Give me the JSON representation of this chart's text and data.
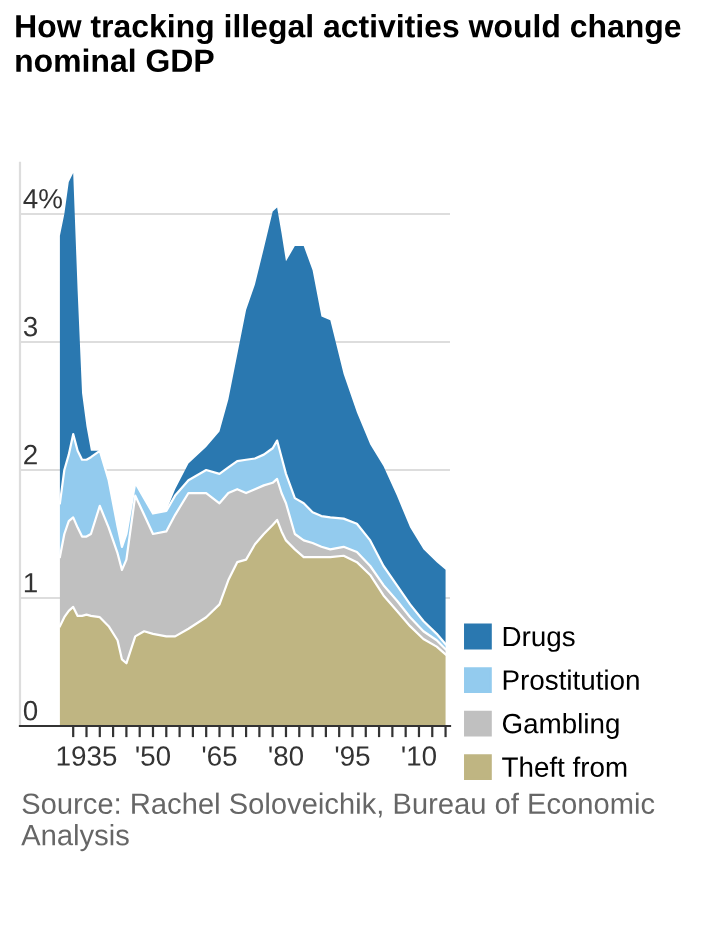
{
  "chart_data": {
    "type": "area",
    "stacked": true,
    "title": "How tracking illegal activities would change nominal GDP",
    "annotations": [
      "Source: Rachel Soloveichik, Bureau of Economic Analysis"
    ],
    "x": [
      1929,
      1930,
      1931,
      1932,
      1933,
      1934,
      1935,
      1936,
      1938,
      1940,
      1942,
      1943,
      1944,
      1946,
      1948,
      1950,
      1953,
      1955,
      1958,
      1962,
      1965,
      1967,
      1969,
      1971,
      1973,
      1975,
      1977,
      1978,
      1979,
      1980,
      1982,
      1984,
      1986,
      1988,
      1990,
      1993,
      1996,
      1999,
      2002,
      2005,
      2008,
      2011,
      2014,
      2016
    ],
    "series": [
      {
        "name": "Theft from",
        "color": "#bfb582",
        "values": [
          0.78,
          0.85,
          0.9,
          0.93,
          0.86,
          0.86,
          0.87,
          0.86,
          0.85,
          0.78,
          0.67,
          0.52,
          0.49,
          0.7,
          0.74,
          0.72,
          0.7,
          0.7,
          0.76,
          0.85,
          0.95,
          1.14,
          1.28,
          1.3,
          1.42,
          1.5,
          1.57,
          1.61,
          1.52,
          1.45,
          1.38,
          1.32,
          1.32,
          1.32,
          1.32,
          1.33,
          1.28,
          1.18,
          1.02,
          0.9,
          0.78,
          0.68,
          0.62,
          0.56
        ]
      },
      {
        "name": "Gambling",
        "color": "#c0c0c0",
        "values": [
          0.54,
          0.65,
          0.7,
          0.7,
          0.69,
          0.62,
          0.61,
          0.64,
          0.87,
          0.77,
          0.68,
          0.7,
          0.81,
          1.1,
          0.91,
          0.78,
          0.82,
          0.95,
          1.06,
          0.97,
          0.79,
          0.68,
          0.57,
          0.52,
          0.43,
          0.38,
          0.33,
          0.32,
          0.3,
          0.29,
          0.12,
          0.13,
          0.11,
          0.08,
          0.06,
          0.07,
          0.08,
          0.07,
          0.08,
          0.08,
          0.07,
          0.06,
          0.05,
          0.04
        ]
      },
      {
        "name": "Prostitution",
        "color": "#93cbee",
        "values": [
          0.42,
          0.5,
          0.52,
          0.65,
          0.6,
          0.6,
          0.6,
          0.6,
          0.43,
          0.37,
          0.21,
          0.18,
          0.2,
          0.1,
          0.13,
          0.16,
          0.16,
          0.15,
          0.1,
          0.18,
          0.23,
          0.2,
          0.22,
          0.26,
          0.24,
          0.24,
          0.27,
          0.3,
          0.28,
          0.23,
          0.28,
          0.29,
          0.24,
          0.24,
          0.25,
          0.22,
          0.22,
          0.2,
          0.15,
          0.12,
          0.1,
          0.08,
          0.05,
          0.04
        ]
      },
      {
        "name": "Drugs",
        "color": "#2a78b0",
        "values": [
          2.09,
          2.0,
          2.13,
          2.04,
          1.25,
          0.52,
          0.26,
          0.05,
          0,
          0,
          0,
          0,
          0,
          0,
          0,
          0,
          0,
          0.05,
          0.13,
          0.18,
          0.33,
          0.53,
          0.83,
          1.17,
          1.36,
          1.61,
          1.85,
          1.82,
          1.75,
          1.66,
          1.97,
          2.01,
          1.89,
          1.56,
          1.54,
          1.13,
          0.87,
          0.75,
          0.78,
          0.7,
          0.6,
          0.56,
          0.56,
          0.58
        ]
      }
    ],
    "xlim": [
      1920,
      2017
    ],
    "xticks": [
      {
        "value": 1932,
        "label": null
      },
      {
        "value": 1935,
        "label": "1935"
      },
      {
        "value": 1938,
        "label": null
      },
      {
        "value": 1941,
        "label": null
      },
      {
        "value": 1944,
        "label": null
      },
      {
        "value": 1947,
        "label": null
      },
      {
        "value": 1950,
        "label": "'50"
      },
      {
        "value": 1953,
        "label": null
      },
      {
        "value": 1956,
        "label": null
      },
      {
        "value": 1959,
        "label": null
      },
      {
        "value": 1962,
        "label": null
      },
      {
        "value": 1965,
        "label": "'65"
      },
      {
        "value": 1968,
        "label": null
      },
      {
        "value": 1971,
        "label": null
      },
      {
        "value": 1974,
        "label": null
      },
      {
        "value": 1977,
        "label": null
      },
      {
        "value": 1980,
        "label": "'80"
      },
      {
        "value": 1983,
        "label": null
      },
      {
        "value": 1986,
        "label": null
      },
      {
        "value": 1989,
        "label": null
      },
      {
        "value": 1992,
        "label": null
      },
      {
        "value": 1995,
        "label": "'95"
      },
      {
        "value": 1998,
        "label": null
      },
      {
        "value": 2001,
        "label": null
      },
      {
        "value": 2004,
        "label": null
      },
      {
        "value": 2007,
        "label": null
      },
      {
        "value": 2010,
        "label": "'10"
      },
      {
        "value": 2013,
        "label": null
      },
      {
        "value": 2016,
        "label": null
      }
    ],
    "ylim": [
      0,
      4.4
    ],
    "yticks": [
      0,
      1,
      2,
      3,
      {
        "value": 4,
        "label": "4%"
      }
    ],
    "grid": "y",
    "legend": "right"
  }
}
